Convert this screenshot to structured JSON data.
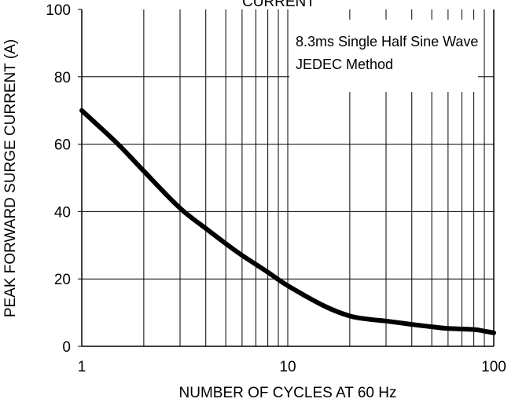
{
  "chart_data": {
    "type": "line",
    "title": "CURRENT",
    "xlabel": "NUMBER OF CYCLES AT 60 Hz",
    "ylabel": "PEAK FORWARD SURGE CURRENT (A)",
    "x_scale": "log",
    "xlim": [
      1,
      100
    ],
    "ylim": [
      0,
      100
    ],
    "x_ticks": [
      "1",
      "10",
      "100"
    ],
    "y_ticks": [
      "0",
      "20",
      "40",
      "60",
      "80",
      "100"
    ],
    "grid": true,
    "annotation": [
      "8.3ms Single Half Sine Wave",
      "JEDEC Method"
    ],
    "series": [
      {
        "x": [
          1,
          1.5,
          2,
          3,
          4,
          5,
          6,
          8,
          10,
          15,
          20,
          25,
          30,
          40,
          50,
          60,
          80,
          90,
          100
        ],
        "y": [
          70,
          60,
          52,
          41,
          35,
          30.5,
          27,
          22,
          18,
          12,
          9,
          8,
          7.5,
          6.5,
          5.8,
          5.3,
          5,
          4.5,
          4
        ]
      }
    ]
  }
}
